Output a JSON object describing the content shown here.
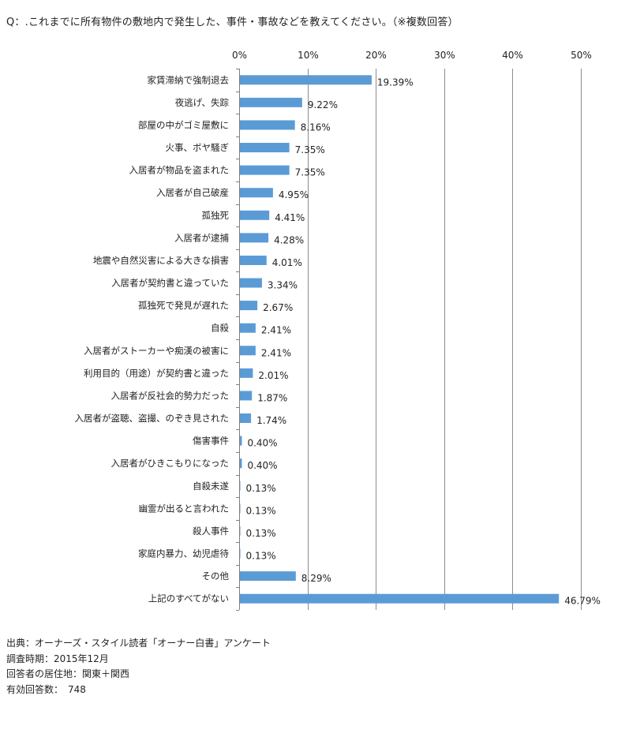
{
  "question": "Q：.これまでに所有物件の敷地内で発生した、事件・事故などを教えてください。（※複数回答）",
  "chart_data": {
    "type": "bar",
    "orientation": "horizontal",
    "color": "#5b9bd5",
    "xlim": [
      0,
      50
    ],
    "x_ticks": [
      "0%",
      "10%",
      "20%",
      "30%",
      "40%",
      "50%"
    ],
    "x_tick_values": [
      0,
      10,
      20,
      30,
      40,
      50
    ],
    "grid": true,
    "axis_position": "top",
    "categories": [
      "家賃滞納で強制退去",
      "夜逃げ、失踪",
      "部屋の中がゴミ屋敷に",
      "火事、ボヤ騒ぎ",
      "入居者が物品を盗まれた",
      "入居者が自己破産",
      "孤独死",
      "入居者が逮捕",
      "地震や自然災害による大きな損害",
      "入居者が契約書と違っていた",
      "孤独死で発見が遅れた",
      "自殺",
      "入居者がストーカーや痴漢の被害に",
      "利用目的（用途）が契約書と違った",
      "入居者が反社会的勢力だった",
      "入居者が盗聴、盗撮、のぞき見された",
      "傷害事件",
      "入居者がひきこもりになった",
      "自殺未遂",
      "幽霊が出ると言われた",
      "殺人事件",
      "家庭内暴力、幼児虐待",
      "その他",
      "上記のすべてがない"
    ],
    "values": [
      19.39,
      9.22,
      8.16,
      7.35,
      7.35,
      4.95,
      4.41,
      4.28,
      4.01,
      3.34,
      2.67,
      2.41,
      2.41,
      2.01,
      1.87,
      1.74,
      0.4,
      0.4,
      0.13,
      0.13,
      0.13,
      0.13,
      8.29,
      46.79
    ],
    "value_labels": [
      "19.39%",
      "9.22%",
      "8.16%",
      "7.35%",
      "7.35%",
      "4.95%",
      "4.41%",
      "4.28%",
      "4.01%",
      "3.34%",
      "2.67%",
      "2.41%",
      "2.41%",
      "2.01%",
      "1.87%",
      "1.74%",
      "0.40%",
      "0.40%",
      "0.13%",
      "0.13%",
      "0.13%",
      "0.13%",
      "8.29%",
      "46.79%"
    ]
  },
  "footer": {
    "source": "出典：オーナーズ・スタイル読者「オーナー白書」アンケート",
    "period": "調査時期：2015年12月",
    "region": "回答者の居住地：関東＋関西",
    "responses": "有効回答数：　748"
  }
}
